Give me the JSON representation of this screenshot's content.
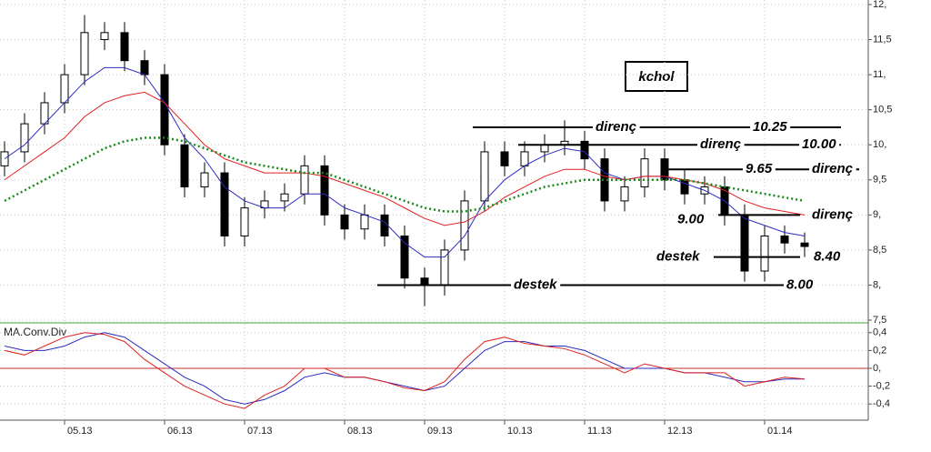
{
  "chart_data": [
    {
      "type": "candlestick",
      "title": "kchol",
      "categories": [
        null,
        null,
        null,
        "05.13",
        null,
        null,
        null,
        null,
        "06.13",
        null,
        null,
        null,
        "07.13",
        null,
        null,
        null,
        null,
        "08.13",
        null,
        null,
        null,
        "09.13",
        null,
        null,
        null,
        "10.13",
        null,
        null,
        null,
        "11.13",
        null,
        null,
        null,
        "12.13",
        null,
        null,
        null,
        null,
        "01.14",
        null,
        null
      ],
      "open": [
        9.7,
        9.9,
        10.3,
        10.6,
        11.0,
        11.5,
        11.6,
        11.2,
        11.0,
        10.0,
        9.4,
        9.6,
        8.7,
        9.1,
        9.2,
        9.3,
        9.7,
        9.0,
        8.8,
        9.0,
        8.7,
        8.1,
        8.0,
        8.5,
        9.2,
        9.9,
        9.7,
        9.9,
        10.0,
        10.05,
        9.8,
        9.2,
        9.4,
        9.8,
        9.5,
        9.3,
        9.4,
        9.0,
        8.2,
        8.7,
        8.6
      ],
      "high": [
        10.05,
        10.45,
        10.75,
        11.15,
        11.85,
        11.75,
        11.75,
        11.35,
        11.15,
        10.15,
        9.75,
        9.75,
        9.25,
        9.35,
        9.45,
        9.85,
        9.85,
        9.15,
        9.15,
        9.15,
        8.85,
        8.25,
        8.65,
        9.35,
        10.05,
        10.05,
        10.05,
        10.15,
        10.35,
        10.2,
        9.95,
        9.55,
        9.95,
        9.95,
        9.65,
        9.55,
        9.55,
        9.15,
        8.85,
        8.85,
        8.75
      ],
      "low": [
        9.55,
        9.75,
        10.15,
        10.45,
        10.85,
        11.35,
        11.05,
        10.85,
        9.85,
        9.25,
        9.25,
        8.55,
        8.55,
        8.95,
        9.05,
        9.15,
        8.85,
        8.65,
        8.65,
        8.55,
        7.95,
        7.7,
        7.85,
        8.35,
        9.05,
        9.55,
        9.55,
        9.75,
        9.85,
        9.65,
        9.05,
        9.05,
        9.25,
        9.35,
        9.15,
        9.15,
        8.85,
        8.05,
        8.05,
        8.45,
        8.4
      ],
      "close": [
        9.9,
        10.3,
        10.6,
        11.0,
        11.6,
        11.6,
        11.2,
        11.0,
        10.0,
        9.4,
        9.6,
        8.7,
        9.1,
        9.2,
        9.3,
        9.7,
        9.0,
        8.8,
        9.0,
        8.7,
        8.1,
        8.0,
        8.5,
        9.2,
        9.9,
        9.7,
        9.9,
        10.0,
        10.05,
        9.8,
        9.2,
        9.4,
        9.8,
        9.5,
        9.3,
        9.4,
        9.0,
        8.2,
        8.7,
        8.6,
        8.55
      ],
      "series": [
        {
          "color": "#2b2bbf",
          "dashed": false,
          "values": [
            9.8,
            10.0,
            10.3,
            10.6,
            10.9,
            11.1,
            11.1,
            11.0,
            10.6,
            10.1,
            9.8,
            9.4,
            9.2,
            9.1,
            9.1,
            9.3,
            9.3,
            9.1,
            9.0,
            8.9,
            8.6,
            8.4,
            8.4,
            8.7,
            9.2,
            9.5,
            9.7,
            9.85,
            9.95,
            9.9,
            9.6,
            9.5,
            9.55,
            9.55,
            9.45,
            9.35,
            9.2,
            8.95,
            8.85,
            8.75,
            8.7
          ]
        },
        {
          "color": "#e02020",
          "dashed": false,
          "values": [
            9.5,
            9.7,
            9.9,
            10.1,
            10.4,
            10.6,
            10.7,
            10.75,
            10.6,
            10.3,
            10.0,
            9.8,
            9.7,
            9.6,
            9.6,
            9.6,
            9.55,
            9.45,
            9.35,
            9.25,
            9.1,
            8.95,
            8.85,
            8.9,
            9.05,
            9.25,
            9.4,
            9.55,
            9.65,
            9.65,
            9.55,
            9.5,
            9.55,
            9.55,
            9.5,
            9.45,
            9.35,
            9.2,
            9.1,
            9.05,
            9.0
          ]
        },
        {
          "color": "#1a8a1a",
          "dashed": true,
          "values": [
            9.2,
            9.35,
            9.5,
            9.65,
            9.8,
            9.95,
            10.05,
            10.1,
            10.1,
            10.05,
            9.95,
            9.85,
            9.75,
            9.7,
            9.65,
            9.6,
            9.6,
            9.5,
            9.4,
            9.3,
            9.2,
            9.1,
            9.05,
            9.05,
            9.1,
            9.2,
            9.3,
            9.4,
            9.45,
            9.5,
            9.5,
            9.5,
            9.5,
            9.5,
            9.5,
            9.45,
            9.4,
            9.35,
            9.3,
            9.25,
            9.2
          ]
        }
      ],
      "levels": [
        {
          "name": "direnç",
          "value": 10.25,
          "value_label": "10.25"
        },
        {
          "name": "direnç",
          "value": 10,
          "value_label": "10.00"
        },
        {
          "name": "direnç",
          "value": 9.65,
          "value_label": "9.65"
        },
        {
          "name": "direnç",
          "value": 9,
          "value_label": "9.00"
        },
        {
          "name": "destek",
          "value": 8.4,
          "value_label": "8.40"
        },
        {
          "name": "destek",
          "value": 8,
          "value_label": "8.00"
        }
      ],
      "ylim": [
        7.5,
        12
      ],
      "yticks": [
        {
          "value": 12,
          "label": "12,"
        },
        {
          "value": 11.5,
          "label": "11,5"
        },
        {
          "value": 11,
          "label": "11,"
        },
        {
          "value": 10.5,
          "label": "10,5"
        },
        {
          "value": 10,
          "label": "10,"
        },
        {
          "value": 9.5,
          "label": "9,5"
        },
        {
          "value": 9,
          "label": "9,"
        },
        {
          "value": 8.5,
          "label": "8,5"
        },
        {
          "value": 8,
          "label": "8,"
        },
        {
          "value": 7.5,
          "label": "7,5"
        }
      ],
      "grid": true
    },
    {
      "type": "line",
      "title": "MA.Conv.Div",
      "series": [
        {
          "color": "#2b2bbf",
          "values": [
            0.25,
            0.2,
            0.2,
            0.25,
            0.35,
            0.4,
            0.35,
            0.2,
            0.05,
            -0.1,
            -0.2,
            -0.35,
            -0.4,
            -0.35,
            -0.25,
            -0.1,
            -0.05,
            -0.1,
            -0.1,
            -0.15,
            -0.2,
            -0.25,
            -0.2,
            0.0,
            0.2,
            0.3,
            0.3,
            0.25,
            0.25,
            0.2,
            0.1,
            0.0,
            0.0,
            0.0,
            -0.05,
            -0.05,
            -0.1,
            -0.15,
            -0.15,
            -0.12,
            -0.12
          ]
        },
        {
          "color": "#e02020",
          "values": [
            0.2,
            0.15,
            0.25,
            0.35,
            0.4,
            0.38,
            0.3,
            0.1,
            -0.05,
            -0.2,
            -0.3,
            -0.4,
            -0.45,
            -0.3,
            -0.2,
            0.0,
            0.0,
            -0.1,
            -0.1,
            -0.15,
            -0.22,
            -0.25,
            -0.15,
            0.1,
            0.3,
            0.35,
            0.28,
            0.25,
            0.22,
            0.15,
            0.05,
            -0.05,
            0.05,
            0.0,
            -0.05,
            -0.05,
            -0.05,
            -0.2,
            -0.15,
            -0.1,
            -0.12
          ]
        }
      ],
      "ylim": [
        -0.5,
        0.5
      ],
      "yticks": [
        {
          "value": 0.4,
          "label": "0,4"
        },
        {
          "value": 0.2,
          "label": "0,2"
        },
        {
          "value": 0,
          "label": "0,"
        },
        {
          "value": -0.2,
          "label": "-0,2"
        },
        {
          "value": -0.4,
          "label": "-0,4"
        }
      ],
      "grid": true
    }
  ]
}
